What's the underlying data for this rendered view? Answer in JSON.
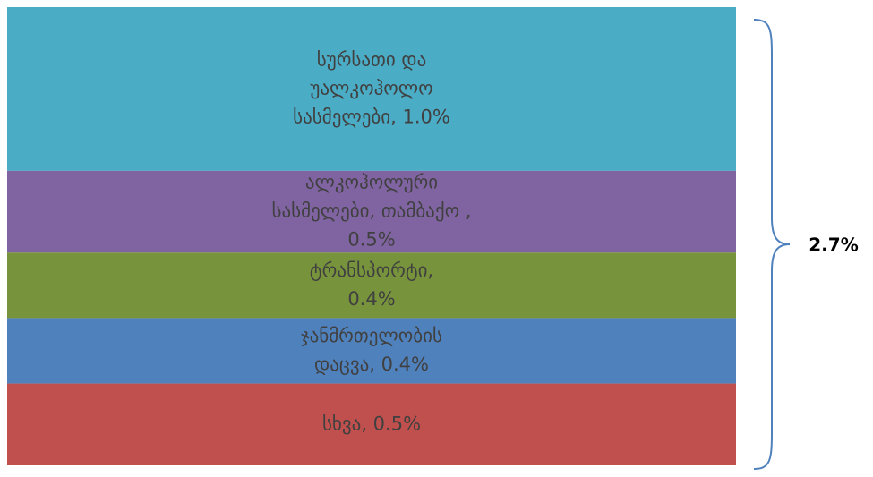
{
  "chart_data": {
    "type": "bar",
    "stacked": true,
    "orientation": "vertical",
    "total_label": "2.7%",
    "segments": [
      {
        "name": "სურსათი და უალკოჰოლო სასმელები",
        "value": 1.0,
        "label_lines": [
          "სურსათი და",
          "უალკოჰოლო",
          "სასმელები, 1.0%"
        ],
        "color": "#4BACC6"
      },
      {
        "name": "ალკოჰოლური სასმელები, თამბაქო",
        "value": 0.5,
        "label_lines": [
          "ალკოჰოლური",
          "სასმელები, თამბაქო ,",
          "0.5%"
        ],
        "color": "#8064A2"
      },
      {
        "name": "ტრანსპორტი",
        "value": 0.4,
        "label_lines": [
          "ტრანსპორტი,",
          "0.4%"
        ],
        "color": "#77933C"
      },
      {
        "name": "ჯანმრთელობის დაცვა",
        "value": 0.4,
        "label_lines": [
          "ჯანმრთელობის",
          "დაცვა, 0.4%"
        ],
        "color": "#4F81BD"
      },
      {
        "name": "სხვა",
        "value": 0.5,
        "label_lines": [
          "სხვა, 0.5%"
        ],
        "color": "#C0504D"
      }
    ],
    "label_color": "#404040",
    "total_label_color": "#000000",
    "brace_color": "#4F81BD"
  }
}
